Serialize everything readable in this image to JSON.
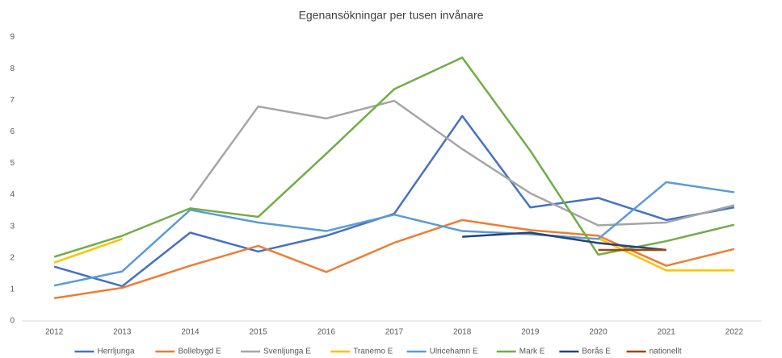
{
  "chart_data": {
    "type": "line",
    "title": "Egenansökningar per tusen invånare",
    "categories": [
      "2012",
      "2013",
      "2014",
      "2015",
      "2016",
      "2017",
      "2018",
      "2019",
      "2020",
      "2021",
      "2022"
    ],
    "ylim": [
      0,
      9
    ],
    "yticks": [
      0,
      1,
      2,
      3,
      4,
      5,
      6,
      7,
      8,
      9
    ],
    "grid": false,
    "legend": "bottom",
    "series": [
      {
        "name": "Herrljunga",
        "color": "#4472c4",
        "values": [
          1.72,
          1.1,
          2.8,
          2.2,
          2.7,
          3.4,
          6.5,
          3.6,
          3.9,
          3.2,
          3.6
        ]
      },
      {
        "name": "Bollebygd E",
        "color": "#ed7d31",
        "values": [
          0.72,
          1.05,
          1.75,
          2.38,
          1.55,
          2.48,
          3.2,
          2.88,
          2.7,
          1.75,
          2.28
        ]
      },
      {
        "name": "Svenljunga E",
        "color": "#a5a5a5",
        "values": [
          null,
          null,
          3.82,
          6.8,
          6.42,
          6.98,
          5.45,
          4.05,
          3.03,
          3.12,
          3.67
        ]
      },
      {
        "name": "Tranemo E",
        "color": "#ffc000",
        "values": [
          1.85,
          2.6,
          null,
          null,
          null,
          null,
          null,
          null,
          2.62,
          1.6,
          1.6
        ]
      },
      {
        "name": "Ulricehamn E",
        "color": "#5b9bd5",
        "values": [
          1.12,
          1.57,
          3.52,
          3.12,
          2.85,
          3.37,
          2.85,
          2.75,
          2.6,
          4.4,
          4.08
        ]
      },
      {
        "name": "Mark E",
        "color": "#70ad47",
        "values": [
          2.03,
          2.7,
          3.57,
          3.3,
          5.3,
          7.35,
          8.35,
          5.4,
          2.1,
          2.53,
          3.05
        ]
      },
      {
        "name": "Borås E",
        "color": "#264478",
        "values": [
          null,
          null,
          null,
          null,
          null,
          null,
          2.67,
          2.8,
          2.47,
          2.25,
          null
        ]
      },
      {
        "name": "nationellt",
        "color": "#9e480e",
        "values": [
          null,
          null,
          null,
          null,
          null,
          null,
          null,
          null,
          2.25,
          2.25,
          null
        ]
      }
    ]
  }
}
